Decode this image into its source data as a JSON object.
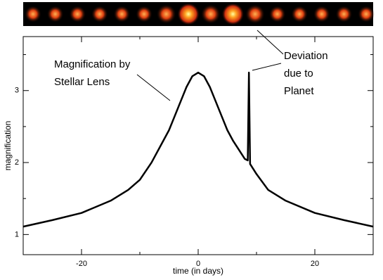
{
  "chart_data": {
    "type": "line",
    "x_label": "time (in days)",
    "y_label": "magnification",
    "x": [
      -30,
      -25,
      -20,
      -15,
      -12,
      -10,
      -8,
      -6,
      -5,
      -4,
      -3,
      -2,
      -1,
      0,
      1,
      2,
      3,
      4,
      5,
      6,
      8,
      8.5,
      8.7,
      8.9,
      10,
      12,
      15,
      20,
      25,
      30
    ],
    "series": [
      {
        "color": "#000000",
        "values": [
          1.11,
          1.2,
          1.3,
          1.47,
          1.62,
          1.76,
          2.0,
          2.3,
          2.45,
          2.65,
          2.85,
          3.05,
          3.2,
          3.25,
          3.2,
          3.05,
          2.85,
          2.65,
          2.45,
          2.3,
          2.05,
          2.03,
          3.25,
          1.98,
          1.84,
          1.62,
          1.47,
          1.3,
          1.2,
          1.11
        ]
      }
    ],
    "xlim": [
      -30,
      30
    ],
    "xticks": [
      -20,
      0,
      20
    ],
    "xminor": [
      -10,
      10
    ],
    "ylim": [
      0.72,
      3.75
    ],
    "yticks": [
      1,
      2,
      3
    ],
    "yminor": [
      1.5,
      2.5,
      3.5
    ],
    "annotations": [
      {
        "lines": [
          "Magnification by",
          "Stellar Lens"
        ]
      },
      {
        "lines": [
          "Deviation",
          "due to",
          "Planet"
        ]
      }
    ]
  }
}
